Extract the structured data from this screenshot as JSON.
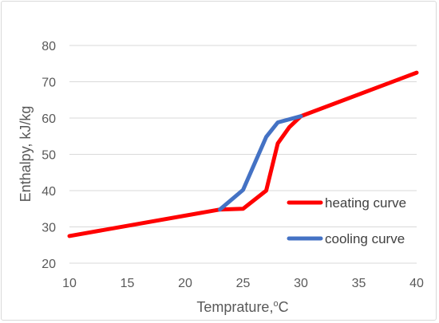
{
  "chart_data": {
    "type": "line",
    "xlabel": "Temprature,",
    "xlabel_unit_sup": "o",
    "xlabel_unit": "C",
    "ylabel": "Enthalpy, kJ/kg",
    "xlim": [
      10,
      40
    ],
    "ylim": [
      20,
      80
    ],
    "x_ticks": [
      "10",
      "15",
      "20",
      "25",
      "30",
      "35",
      "40"
    ],
    "y_ticks": [
      "20",
      "30",
      "40",
      "50",
      "60",
      "70",
      "80"
    ],
    "grid": "horizontal",
    "legend_position": "right",
    "series": [
      {
        "name": "heating curve",
        "color": "#ff0000",
        "points": [
          [
            10,
            27.5
          ],
          [
            23,
            34.8
          ],
          [
            25,
            35.0
          ],
          [
            27,
            40.0
          ],
          [
            28,
            53.0
          ],
          [
            29,
            57.5
          ],
          [
            30,
            60.5
          ],
          [
            40,
            72.5
          ]
        ]
      },
      {
        "name": "cooling curve",
        "color": "#4472c4",
        "points": [
          [
            23,
            34.8
          ],
          [
            25,
            40.2
          ],
          [
            27,
            54.8
          ],
          [
            28,
            58.8
          ],
          [
            30,
            60.5
          ]
        ]
      }
    ]
  }
}
